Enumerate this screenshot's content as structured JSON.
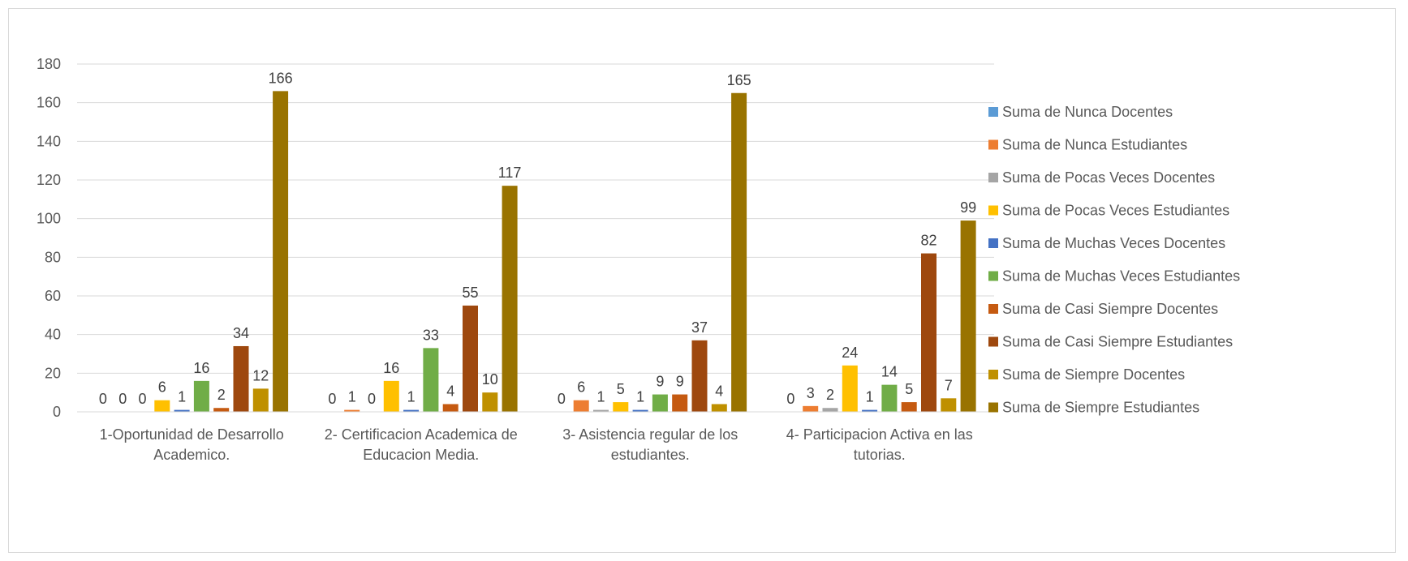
{
  "chart_data": {
    "type": "bar",
    "title": "",
    "xlabel": "",
    "ylabel": "",
    "ylim": [
      0,
      180
    ],
    "yticks": [
      0,
      20,
      40,
      60,
      80,
      100,
      120,
      140,
      160,
      180
    ],
    "grid": true,
    "legend_position": "right",
    "categories": [
      [
        "1-Oportunidad de Desarrollo",
        "Academico."
      ],
      [
        "2- Certificacion Academica de",
        "Educacion Media."
      ],
      [
        "3- Asistencia regular de los",
        "estudiantes."
      ],
      [
        "4- Participacion Activa en las",
        "tutorias."
      ]
    ],
    "series": [
      {
        "name": "Suma de Nunca Docentes",
        "color": "#5B9BD5",
        "values": [
          0,
          0,
          0,
          0
        ],
        "labels": [
          true,
          true,
          true,
          true
        ]
      },
      {
        "name": "Suma de Nunca Estudiantes",
        "color": "#ED7D31",
        "values": [
          0,
          1,
          6,
          3
        ],
        "labels": [
          true,
          true,
          true,
          true
        ]
      },
      {
        "name": "Suma de Pocas Veces Docentes",
        "color": "#A5A5A5",
        "values": [
          0,
          0,
          1,
          2
        ],
        "labels": [
          true,
          true,
          true,
          true
        ]
      },
      {
        "name": "Suma de Pocas Veces Estudiantes",
        "color": "#FFC000",
        "values": [
          6,
          16,
          5,
          24
        ],
        "labels": [
          true,
          true,
          true,
          true
        ]
      },
      {
        "name": "Suma de Muchas Veces Docentes",
        "color": "#4472C4",
        "values": [
          1,
          1,
          1,
          1
        ],
        "labels": [
          true,
          true,
          true,
          true
        ]
      },
      {
        "name": "Suma de Muchas Veces Estudiantes",
        "color": "#70AD47",
        "values": [
          16,
          33,
          9,
          14
        ],
        "labels": [
          true,
          true,
          true,
          true
        ]
      },
      {
        "name": "Suma de Casi Siempre Docentes",
        "color": "#C55A11",
        "values": [
          2,
          4,
          9,
          5
        ],
        "labels": [
          true,
          true,
          true,
          true
        ]
      },
      {
        "name": "Suma de Casi Siempre Estudiantes",
        "color": "#9E480E",
        "values": [
          34,
          55,
          37,
          82
        ],
        "labels": [
          true,
          true,
          true,
          true
        ]
      },
      {
        "name": "Suma de Siempre Docentes",
        "color": "#BF9000",
        "values": [
          12,
          10,
          4,
          7
        ],
        "labels": [
          true,
          true,
          true,
          true
        ]
      },
      {
        "name": "Suma de Siempre Estudiantes",
        "color": "#997300",
        "values": [
          166,
          117,
          165,
          99
        ],
        "labels": [
          true,
          true,
          true,
          true
        ]
      }
    ]
  }
}
